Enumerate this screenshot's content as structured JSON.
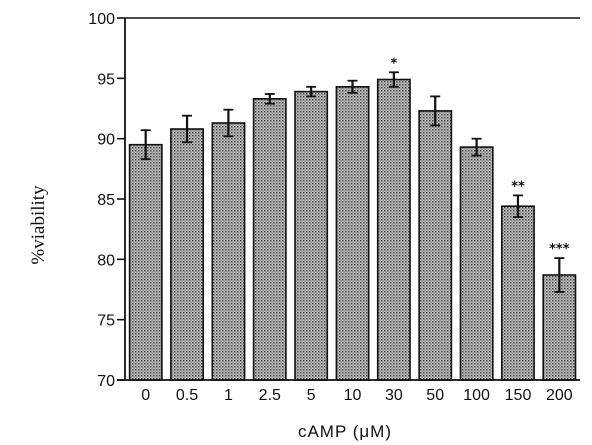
{
  "chart_data": {
    "type": "bar",
    "title": "",
    "xlabel": "cAMP (μM)",
    "ylabel": "%viability",
    "categories": [
      "0",
      "0.5",
      "1",
      "2.5",
      "5",
      "10",
      "30",
      "50",
      "100",
      "150",
      "200"
    ],
    "values": [
      89.5,
      90.8,
      91.3,
      93.3,
      93.9,
      94.3,
      94.9,
      92.3,
      89.3,
      84.4,
      78.7
    ],
    "errors": [
      1.2,
      1.1,
      1.1,
      0.4,
      0.4,
      0.5,
      0.6,
      1.2,
      0.7,
      0.9,
      1.4
    ],
    "annotations": [
      "",
      "",
      "",
      "",
      "",
      "",
      "*",
      "",
      "",
      "**",
      "***"
    ],
    "ylim": [
      70,
      100
    ],
    "yticks": [
      "70",
      "75",
      "80",
      "85",
      "90",
      "95",
      "100"
    ],
    "grid": false,
    "bar_color": "#9a9a9a"
  }
}
